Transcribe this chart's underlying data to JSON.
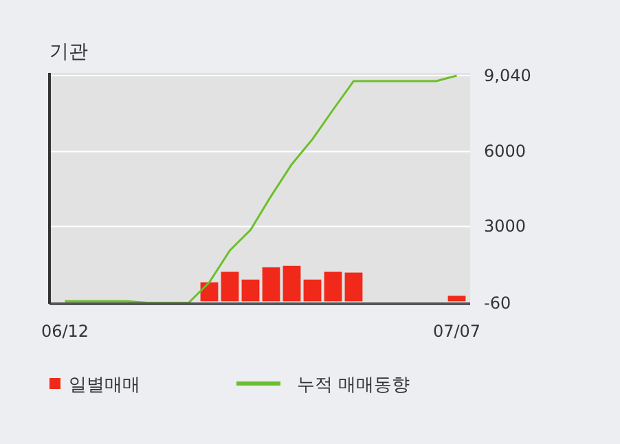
{
  "chart_data": {
    "type": "bar",
    "title": "기관",
    "categories": [
      "06/12",
      null,
      null,
      null,
      null,
      null,
      null,
      null,
      null,
      null,
      null,
      null,
      null,
      null,
      null,
      null,
      null,
      null,
      null,
      "07/07"
    ],
    "series": [
      {
        "name": "일별매매",
        "color": "#f0291a",
        "values": [
          0,
          0,
          0,
          0,
          0,
          0,
          0,
          760,
          1180,
          870,
          1360,
          1420,
          870,
          1180,
          1150,
          0,
          0,
          0,
          0,
          220
        ]
      },
      {
        "name": "누적 매매동향",
        "type": "line",
        "color": "#6cbf2a",
        "values": [
          0,
          0,
          0,
          0,
          -60,
          -60,
          -60,
          760,
          2040,
          2860,
          4220,
          5490,
          6490,
          7670,
          8820,
          8820,
          8820,
          8820,
          8820,
          9040
        ]
      }
    ],
    "ylim": [
      -100,
      9150
    ],
    "yticks": [
      -60,
      3000,
      6000,
      {
        "value": 9040,
        "label": "9,040"
      }
    ],
    "grid": "y",
    "legend": "bottom"
  }
}
